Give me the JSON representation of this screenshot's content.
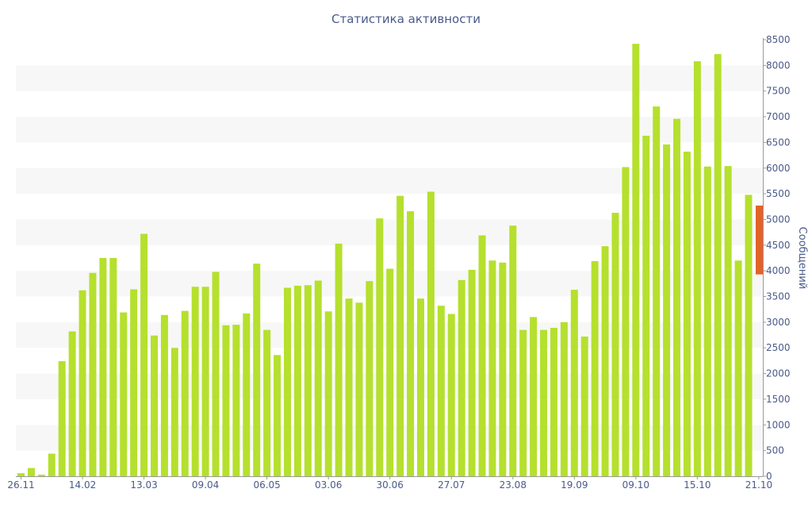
{
  "chart_data": {
    "type": "bar",
    "title": "Статистика активности",
    "ylabel": "Сообщений",
    "xlabel": "",
    "ylim": [
      0,
      8500
    ],
    "yticks": [
      0,
      500,
      1000,
      1500,
      2000,
      2500,
      3000,
      3500,
      4000,
      4500,
      5000,
      5500,
      6000,
      6500,
      7000,
      7500,
      8000,
      8500
    ],
    "axis_position": "right",
    "grid": "alternating horizontal bands",
    "x_tick_labels": [
      {
        "index": 0,
        "label": "26.11"
      },
      {
        "index": 6,
        "label": "14.02"
      },
      {
        "index": 12,
        "label": "13.03"
      },
      {
        "index": 18,
        "label": "09.04"
      },
      {
        "index": 24,
        "label": "06.05"
      },
      {
        "index": 30,
        "label": "03.06"
      },
      {
        "index": 36,
        "label": "30.06"
      },
      {
        "index": 42,
        "label": "27.07"
      },
      {
        "index": 48,
        "label": "23.08"
      },
      {
        "index": 54,
        "label": "19.09"
      },
      {
        "index": 60,
        "label": "09.10"
      },
      {
        "index": 66,
        "label": "15.10"
      },
      {
        "index": 72,
        "label": "21.10"
      }
    ],
    "values": [
      60,
      160,
      30,
      440,
      2240,
      2820,
      3620,
      3960,
      4250,
      4250,
      3190,
      3640,
      4720,
      2740,
      3140,
      2500,
      3220,
      3690,
      3690,
      3980,
      2940,
      2950,
      3170,
      4140,
      2850,
      2360,
      3670,
      3710,
      3720,
      3810,
      3210,
      4530,
      3460,
      3380,
      3800,
      5020,
      4040,
      5460,
      5160,
      3460,
      5540,
      3320,
      3160,
      3820,
      4020,
      4690,
      4200,
      4160,
      4880,
      2850,
      3100,
      2850,
      2890,
      3000,
      3630,
      2720,
      4190,
      4480,
      5130,
      6020,
      8420,
      6630,
      7200,
      6460,
      6960,
      6320,
      8080,
      6030,
      8220,
      6040,
      4200,
      5480
    ],
    "highlight_range": [
      3930,
      5270
    ],
    "colors": {
      "bar": "#b5e02e",
      "highlight": "#e2622a",
      "band": "#f7f7f7",
      "axis": "#999999",
      "text": "#4a5a8a"
    }
  }
}
